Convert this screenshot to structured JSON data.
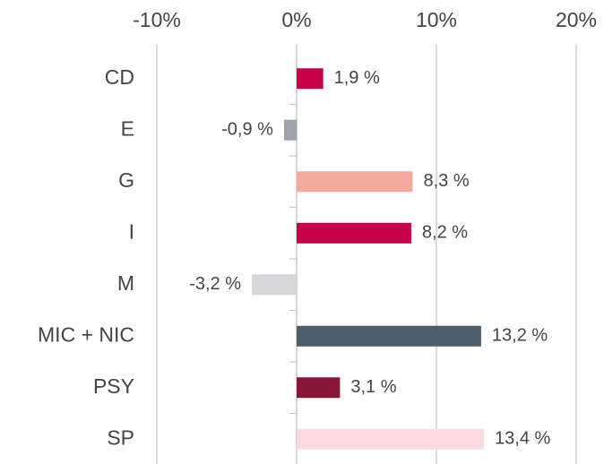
{
  "chart_data": {
    "type": "bar",
    "orientation": "horizontal",
    "categories": [
      "CD",
      "E",
      "G",
      "I",
      "M",
      "MIC + NIC",
      "PSY",
      "SP"
    ],
    "values": [
      1.9,
      -0.9,
      8.3,
      8.2,
      -3.2,
      13.2,
      3.1,
      13.4
    ],
    "value_labels": [
      "1,9 %",
      "-0,9 %",
      "8,3 %",
      "8,2 %",
      "-3,2 %",
      "13,2 %",
      "3,1 %",
      "13,4 %"
    ],
    "colors": [
      "#c8004a",
      "#9ea3ad",
      "#f6aa9d",
      "#c8004a",
      "#d6d6db",
      "#4d5e6b",
      "#8b1538",
      "#fcd8df"
    ],
    "xlim": [
      -10,
      20
    ],
    "xticks": [
      {
        "value": -10,
        "label": "-10%"
      },
      {
        "value": 0,
        "label": "0%"
      },
      {
        "value": 10,
        "label": "10%"
      },
      {
        "value": 20,
        "label": "20%"
      }
    ],
    "grid": true
  }
}
